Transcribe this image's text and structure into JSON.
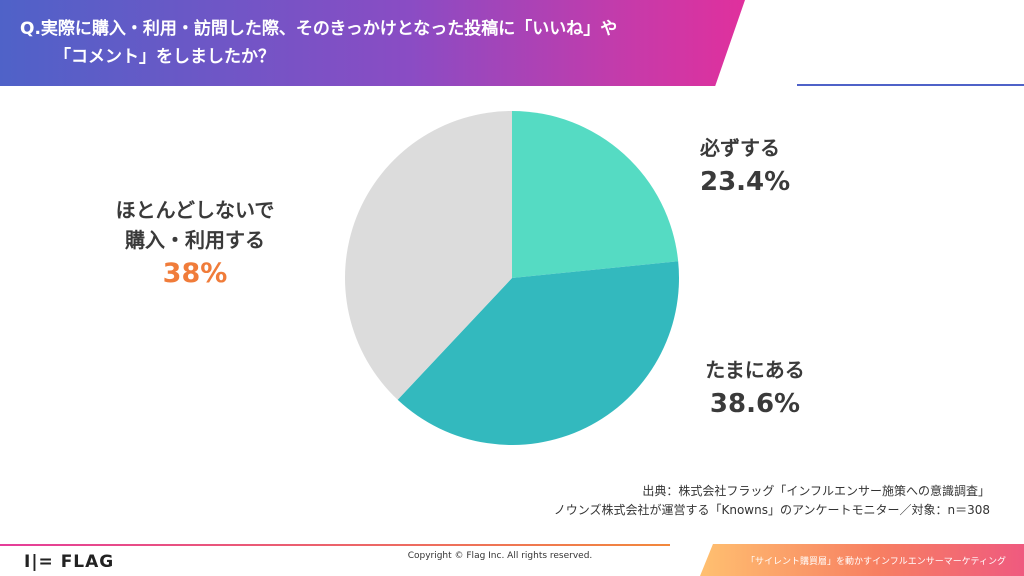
{
  "question": {
    "line1": "Q.実際に購入・利用・訪問した際、そのきっかけとなった投稿に「いいね」や",
    "line2": "「コメント」をしましたか？"
  },
  "chart_data": {
    "type": "pie",
    "slices": [
      {
        "label": "必ずする",
        "value": 23.4,
        "display": "23.4%",
        "color": "#55dbc3"
      },
      {
        "label": "たまにある",
        "value": 38.6,
        "display": "38.6%",
        "color": "#33b9be"
      },
      {
        "label": "ほとんどしないで購入・利用する",
        "value": 38,
        "display": "38%",
        "color": "#dcdcdc"
      }
    ],
    "start": "12 o'clock",
    "direction": "clockwise"
  },
  "labels": {
    "always": {
      "name": "必ずする",
      "pct": "23.4%"
    },
    "sometimes": {
      "name": "たまにある",
      "pct": "38.6%"
    },
    "rarely": {
      "name_line1": "ほとんどしないで",
      "name_line2": "購入・利用する",
      "pct": "38%",
      "pct_color": "#f07c3a"
    }
  },
  "source": {
    "line1": "出典：株式会社フラッグ「インフルエンサー施策への意識調査」",
    "line2": "ノウンズ株式会社が運営する「Knowns」のアンケートモニター／対象：n＝308"
  },
  "footer": {
    "logo": "I|= FLAG",
    "copyright": "Copyright © Flag Inc. All rights reserved.",
    "tagline": "「サイレント購買層」を動かすインフルエンサーマーケティング"
  }
}
